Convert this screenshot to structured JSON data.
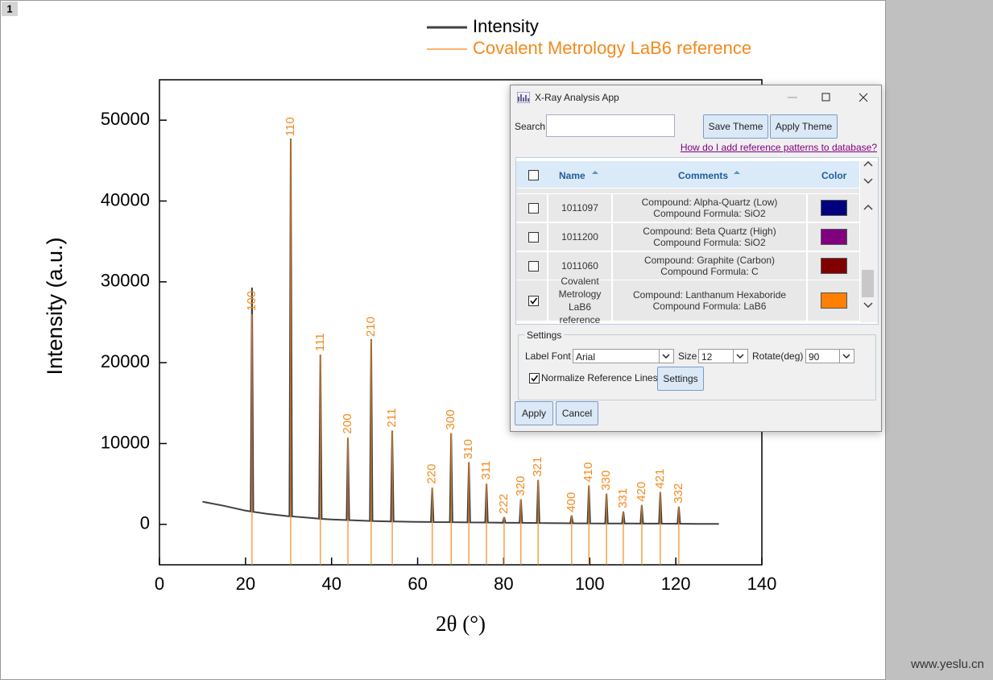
{
  "page": {
    "tab": "1",
    "watermark": "www.yeslu.cn"
  },
  "chart_data": {
    "type": "line",
    "x_label": "2θ (°)",
    "y_label": "Intensity (a.u.)",
    "xlim": [
      0,
      140
    ],
    "xticks": [
      0,
      20,
      40,
      60,
      80,
      100,
      120,
      140
    ],
    "ylim": [
      -5000,
      55000
    ],
    "yticks": [
      0,
      10000,
      20000,
      30000,
      40000,
      50000
    ],
    "series": [
      {
        "name": "Intensity",
        "color": "#404040",
        "kind": "line",
        "x": [
          10,
          15,
          20,
          21.2,
          21.5,
          21.8,
          25,
          30,
          30.2,
          30.5,
          30.8,
          35,
          37.1,
          37.4,
          37.7,
          40,
          43.5,
          43.8,
          44.1,
          45,
          48.9,
          49.2,
          49.5,
          50,
          53.8,
          54.1,
          54.4,
          55,
          60,
          63.1,
          63.4,
          63.7,
          67.5,
          67.8,
          68.1,
          70,
          71.6,
          71.9,
          72.2,
          75.7,
          76.0,
          76.3,
          79.8,
          80.1,
          80.4,
          83.7,
          84.0,
          84.3,
          87.7,
          88.0,
          88.3,
          90,
          95.5,
          95.8,
          96.1,
          99.5,
          99.8,
          100.1,
          103.6,
          103.9,
          104.2,
          107.5,
          107.8,
          108.1,
          110,
          111.8,
          112.1,
          112.4,
          116.1,
          116.4,
          116.7,
          120.4,
          120.7,
          121.0,
          125,
          130
        ],
        "values": [
          2800,
          2300,
          1700,
          1600,
          29300,
          1550,
          1300,
          1000,
          1000,
          47700,
          980,
          800,
          700,
          21000,
          680,
          600,
          530,
          10700,
          525,
          500,
          420,
          22900,
          415,
          400,
          360,
          11600,
          355,
          350,
          300,
          290,
          4500,
          285,
          270,
          11300,
          268,
          250,
          245,
          7700,
          243,
          230,
          5000,
          228,
          200,
          900,
          198,
          190,
          3100,
          188,
          170,
          5500,
          168,
          150,
          135,
          1100,
          133,
          120,
          4800,
          119,
          110,
          3800,
          109,
          104,
          1600,
          102,
          100,
          97,
          2400,
          96,
          90,
          4000,
          89,
          80,
          2200,
          79,
          65,
          50
        ]
      },
      {
        "name": "Covalent Metrology LaB6 reference",
        "color": "#f28a1c",
        "kind": "sticks",
        "x": [
          21.5,
          30.5,
          37.4,
          43.8,
          49.2,
          54.1,
          63.4,
          67.8,
          71.9,
          76.0,
          80.1,
          84.0,
          88.0,
          95.8,
          99.8,
          103.9,
          107.8,
          112.1,
          116.4,
          120.7
        ],
        "values": [
          26000,
          47600,
          21000,
          10800,
          22800,
          11600,
          4600,
          11300,
          7650,
          5100,
          900,
          3100,
          5500,
          1100,
          4800,
          3800,
          1600,
          2400,
          4000,
          2200
        ],
        "hkl": [
          "100",
          "110",
          "111",
          "200",
          "210",
          "211",
          "220",
          "300",
          "310",
          "311",
          "222",
          "320",
          "321",
          "400",
          "410",
          "330",
          "331",
          "420",
          "421",
          "332"
        ]
      }
    ]
  },
  "dialog": {
    "title": "X-Ray Analysis App",
    "search_label": "Search",
    "save_theme": "Save Theme",
    "apply_theme": "Apply Theme",
    "help_link": "How do I add reference patterns to database?",
    "columns": [
      "Name",
      "Comments",
      "Color"
    ],
    "rows": [
      {
        "name": "1011097",
        "compound": "Compound: Alpha-Quartz (Low)",
        "formula": "Compound Formula: SiO2",
        "color": "#000080",
        "checked": false
      },
      {
        "name": "1011200",
        "compound": "Compound: Beta Quartz (High)",
        "formula": "Compound Formula: SiO2",
        "color": "#800080",
        "checked": false
      },
      {
        "name": "1011060",
        "compound": "Compound: Graphite (Carbon)",
        "formula": "Compound Formula: C",
        "color": "#800000",
        "checked": false
      },
      {
        "name": "Covalent Metrology LaB6 reference",
        "compound": "Compound: Lanthanum Hexaboride",
        "formula": "Compound Formula: LaB6",
        "color": "#ff8000",
        "checked": true
      }
    ],
    "settings": {
      "group": "Settings",
      "font_label": "Label Font",
      "font": "Arial",
      "size_label": "Size",
      "size": "12",
      "rotate_label": "Rotate(deg)",
      "rotate": "90",
      "normalize": "Normalize Reference Lines",
      "normalize_checked": true,
      "settings_button": "Settings"
    },
    "apply": "Apply",
    "cancel": "Cancel"
  }
}
